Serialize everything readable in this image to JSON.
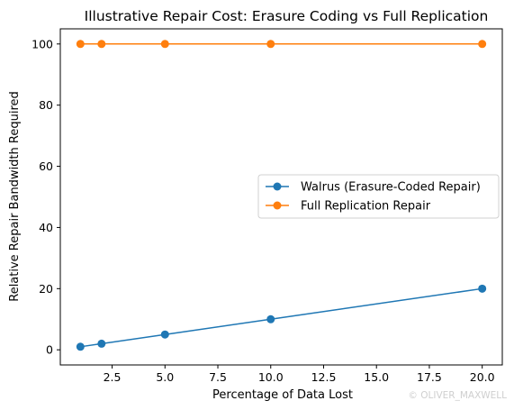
{
  "chart_data": {
    "type": "line",
    "title": "Illustrative Repair Cost: Erasure Coding vs Full Replication",
    "xlabel": "Percentage of Data Lost",
    "ylabel": "Relative Repair Bandwidth Required",
    "x": [
      1,
      2,
      5,
      10,
      20
    ],
    "xlim": [
      0.05,
      20.95
    ],
    "ylim": [
      -4.95,
      104.95
    ],
    "xticks": [
      2.5,
      5.0,
      7.5,
      10.0,
      12.5,
      15.0,
      17.5,
      20.0
    ],
    "xtick_labels": [
      "2.5",
      "5.0",
      "7.5",
      "10.0",
      "12.5",
      "15.0",
      "17.5",
      "20.0"
    ],
    "yticks": [
      0,
      20,
      40,
      60,
      80,
      100
    ],
    "ytick_labels": [
      "0",
      "20",
      "40",
      "60",
      "80",
      "100"
    ],
    "series": [
      {
        "name": "Walrus (Erasure-Coded Repair)",
        "values": [
          1,
          2,
          5,
          10,
          20
        ],
        "color": "#1f77b4"
      },
      {
        "name": "Full Replication Repair",
        "values": [
          100,
          100,
          100,
          100,
          100
        ],
        "color": "#ff7f0e"
      }
    ],
    "legend_position": "center-right",
    "grid": false
  },
  "watermark": "© OLIVER_MAXWELL"
}
